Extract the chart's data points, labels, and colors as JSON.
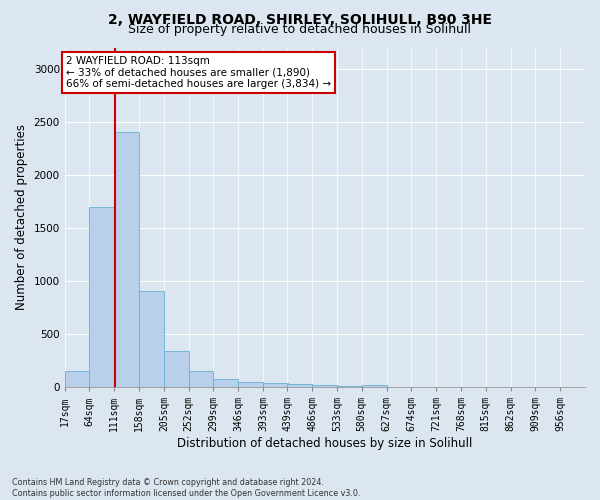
{
  "title1": "2, WAYFIELD ROAD, SHIRLEY, SOLIHULL, B90 3HE",
  "title2": "Size of property relative to detached houses in Solihull",
  "xlabel": "Distribution of detached houses by size in Solihull",
  "ylabel": "Number of detached properties",
  "footer1": "Contains HM Land Registry data © Crown copyright and database right 2024.",
  "footer2": "Contains public sector information licensed under the Open Government Licence v3.0.",
  "bar_edges": [
    17,
    64,
    111,
    158,
    205,
    252,
    299,
    346,
    393,
    439,
    486,
    533,
    580,
    627,
    674,
    721,
    768,
    815,
    862,
    909,
    956
  ],
  "bar_heights": [
    150,
    1700,
    2400,
    910,
    340,
    155,
    80,
    50,
    35,
    28,
    20,
    10,
    25,
    5,
    5,
    3,
    3,
    2,
    2,
    2
  ],
  "bar_color": "#b8d0ea",
  "bar_edge_color": "#6aaed6",
  "property_size": 113,
  "vline_color": "#cc0000",
  "annotation_text": "2 WAYFIELD ROAD: 113sqm\n← 33% of detached houses are smaller (1,890)\n66% of semi-detached houses are larger (3,834) →",
  "annotation_box_color": "#ffffff",
  "annotation_box_edge_color": "#cc0000",
  "ylim": [
    0,
    3200
  ],
  "yticks": [
    0,
    500,
    1000,
    1500,
    2000,
    2500,
    3000
  ],
  "fig_bg_color": "#dce6f0",
  "plot_bg_color": "#dce6f0",
  "title1_fontsize": 10,
  "title2_fontsize": 9,
  "xlabel_fontsize": 8.5,
  "ylabel_fontsize": 8.5,
  "tick_fontsize": 7,
  "annotation_fontsize": 7.5,
  "footer_fontsize": 5.8
}
